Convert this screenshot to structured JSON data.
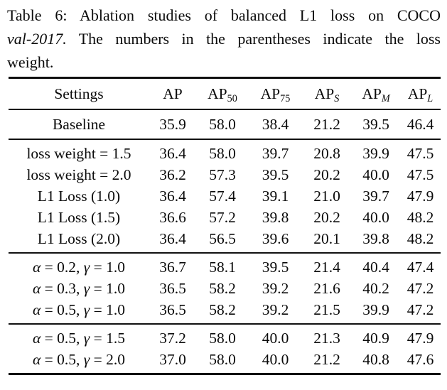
{
  "caption": {
    "line1": "Table 6:  Ablation studies of balanced L1 loss on COCO",
    "line2_italic": "val-2017.",
    "line2_rest": "The numbers in the parentheses indicate the loss",
    "line3": "weight."
  },
  "table": {
    "columns": [
      {
        "label": "Settings",
        "sub": "",
        "sub_italic": false
      },
      {
        "label": "AP",
        "sub": "",
        "sub_italic": false
      },
      {
        "label": "AP",
        "sub": "50",
        "sub_italic": false
      },
      {
        "label": "AP",
        "sub": "75",
        "sub_italic": false
      },
      {
        "label": "AP",
        "sub": "S",
        "sub_italic": true
      },
      {
        "label": "AP",
        "sub": "M",
        "sub_italic": true
      },
      {
        "label": "AP",
        "sub": "L",
        "sub_italic": true
      }
    ],
    "groups": [
      {
        "rows": [
          {
            "setting": "Baseline",
            "math": false,
            "values": [
              "35.9",
              "58.0",
              "38.4",
              "21.2",
              "39.5",
              "46.4"
            ]
          }
        ]
      },
      {
        "rows": [
          {
            "setting": "loss weight = 1.5",
            "math": false,
            "values": [
              "36.4",
              "58.0",
              "39.7",
              "20.8",
              "39.9",
              "47.5"
            ]
          },
          {
            "setting": "loss weight = 2.0",
            "math": false,
            "values": [
              "36.2",
              "57.3",
              "39.5",
              "20.2",
              "40.0",
              "47.5"
            ]
          },
          {
            "setting": "L1 Loss (1.0)",
            "math": false,
            "values": [
              "36.4",
              "57.4",
              "39.1",
              "21.0",
              "39.7",
              "47.9"
            ]
          },
          {
            "setting": "L1 Loss (1.5)",
            "math": false,
            "values": [
              "36.6",
              "57.2",
              "39.8",
              "20.2",
              "40.0",
              "48.2"
            ]
          },
          {
            "setting": "L1 Loss (2.0)",
            "math": false,
            "values": [
              "36.4",
              "56.5",
              "39.6",
              "20.1",
              "39.8",
              "48.2"
            ]
          }
        ]
      },
      {
        "rows": [
          {
            "setting": "α = 0.2, γ = 1.0",
            "math": true,
            "values": [
              "36.7",
              "58.1",
              "39.5",
              "21.4",
              "40.4",
              "47.4"
            ]
          },
          {
            "setting": "α = 0.3, γ = 1.0",
            "math": true,
            "values": [
              "36.5",
              "58.2",
              "39.2",
              "21.6",
              "40.2",
              "47.2"
            ]
          },
          {
            "setting": "α = 0.5, γ = 1.0",
            "math": true,
            "values": [
              "36.5",
              "58.2",
              "39.2",
              "21.5",
              "39.9",
              "47.2"
            ]
          }
        ]
      },
      {
        "rows": [
          {
            "setting": "α = 0.5, γ = 1.5",
            "math": true,
            "values": [
              "37.2",
              "58.0",
              "40.0",
              "21.3",
              "40.9",
              "47.9"
            ]
          },
          {
            "setting": "α = 0.5, γ = 2.0",
            "math": true,
            "values": [
              "37.0",
              "58.0",
              "40.0",
              "21.2",
              "40.8",
              "47.6"
            ]
          }
        ]
      }
    ]
  }
}
